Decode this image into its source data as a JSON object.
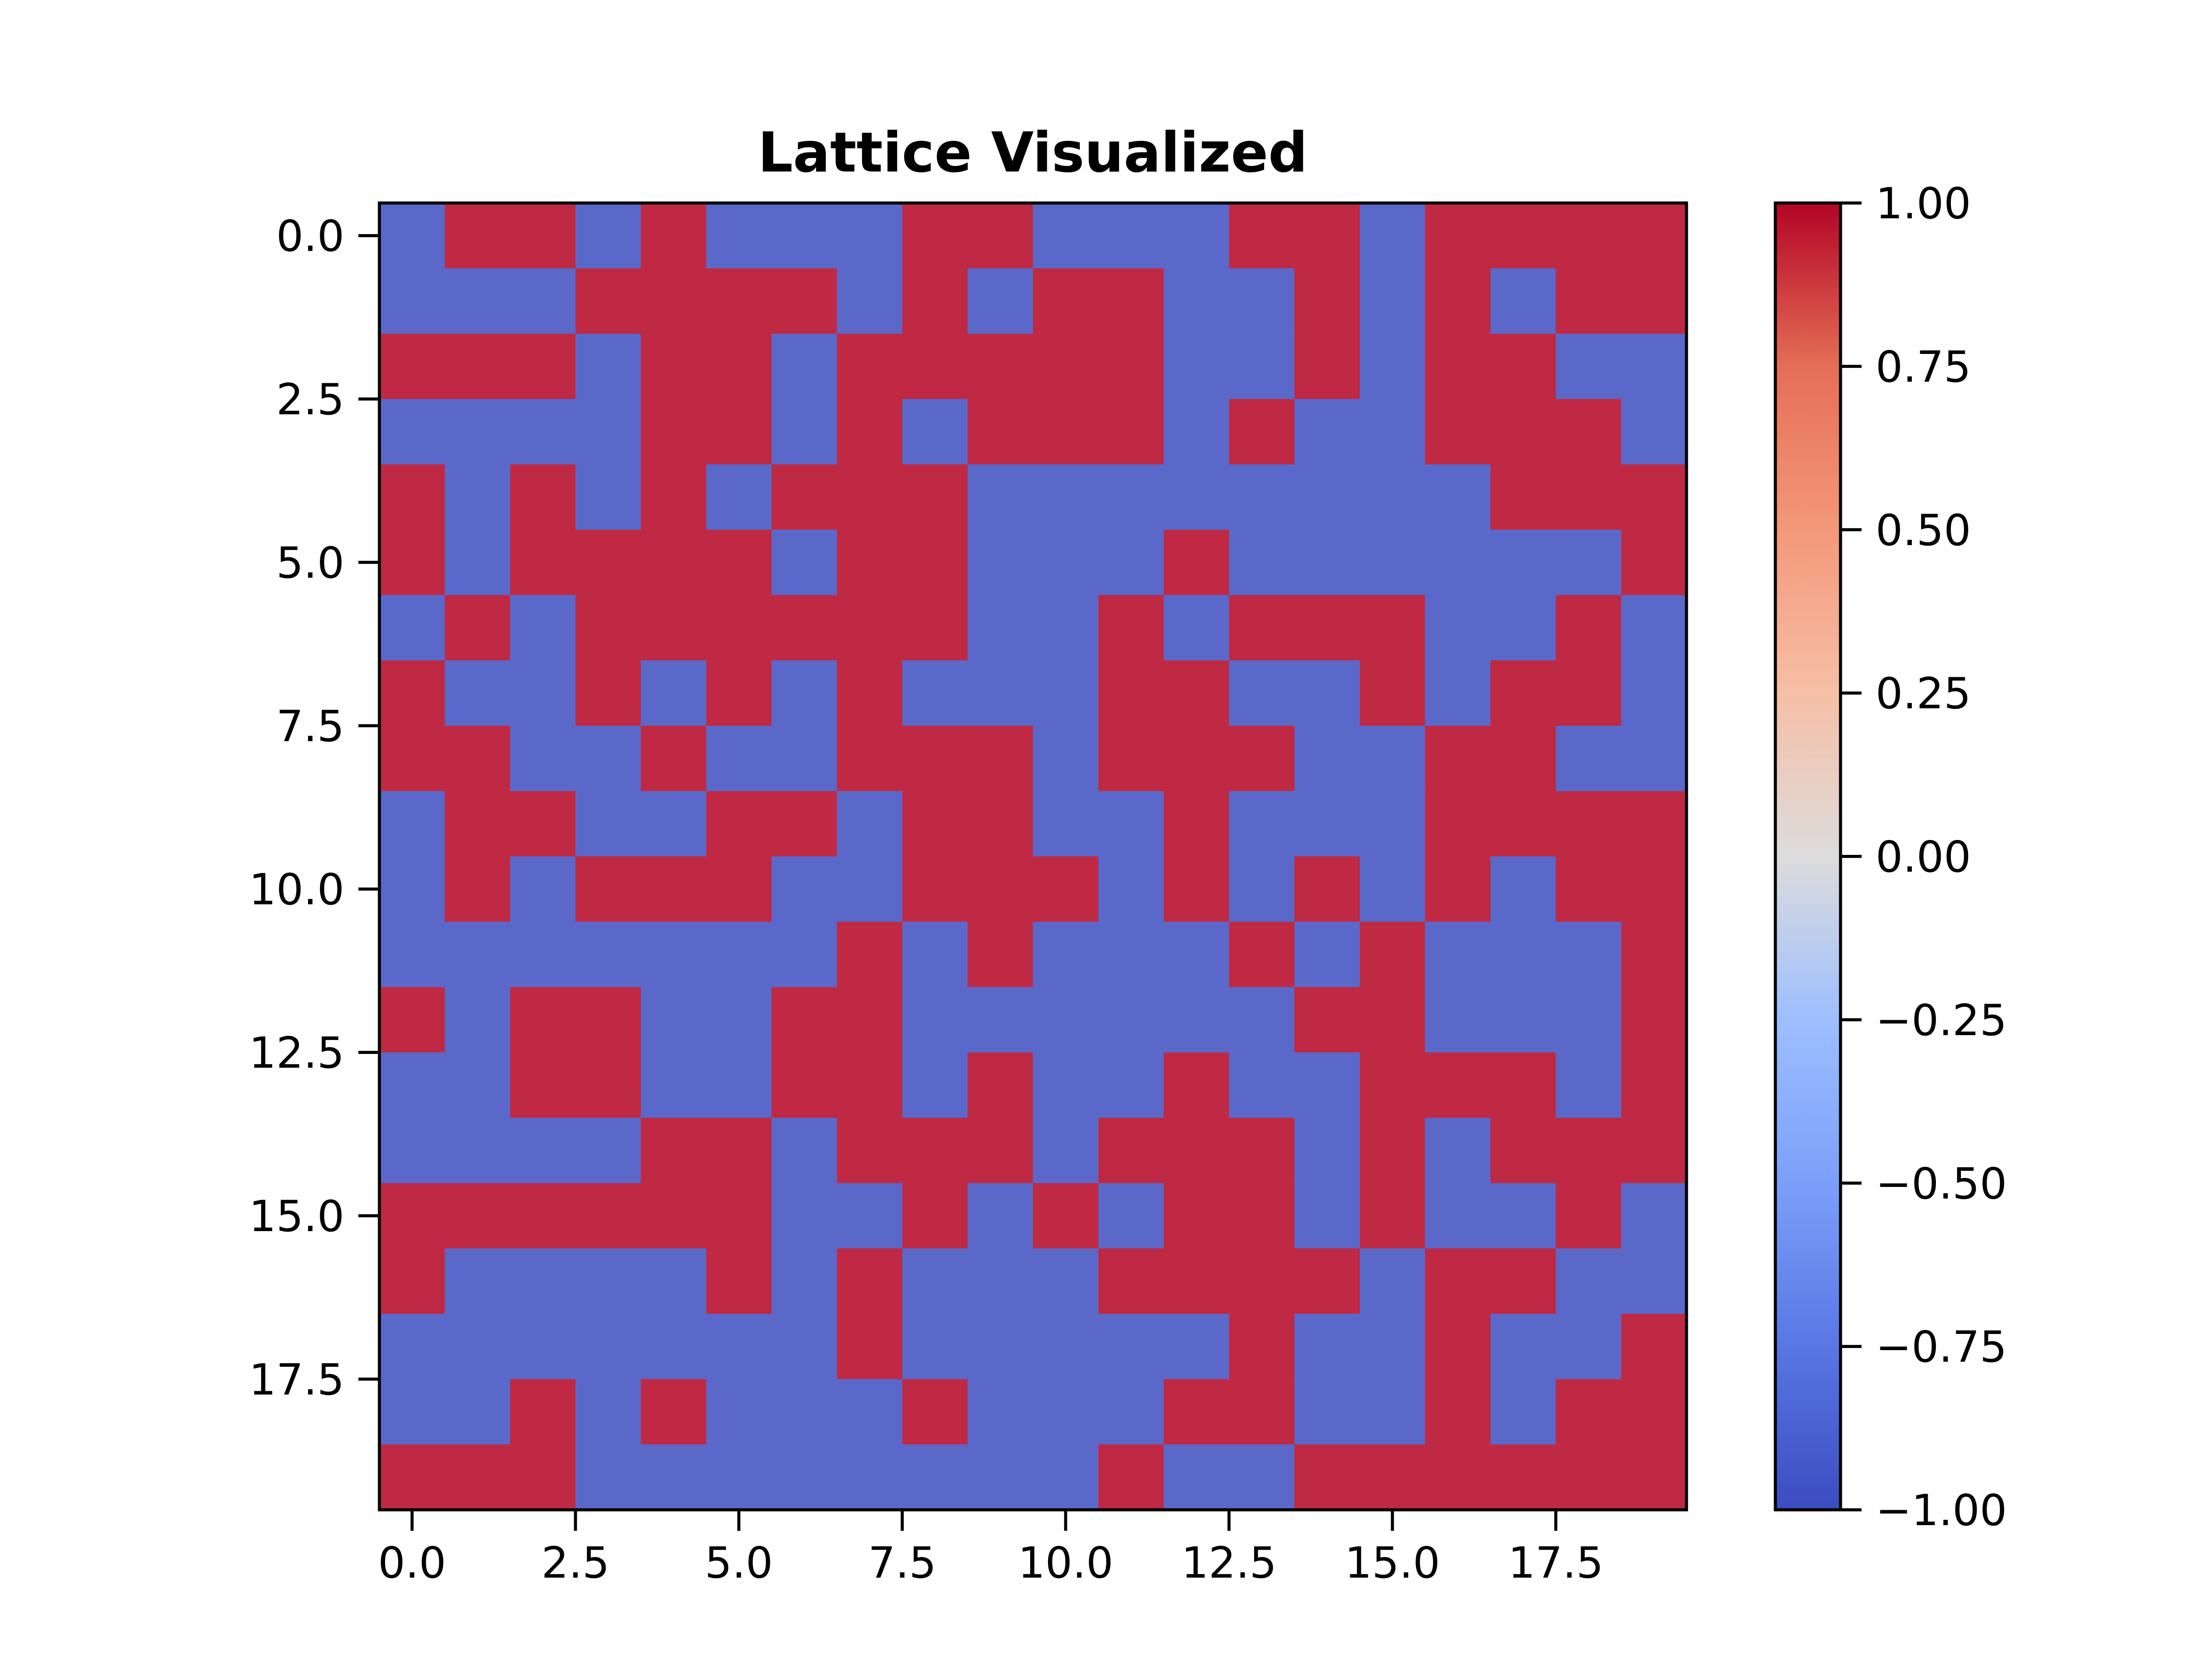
{
  "chart_data": {
    "type": "heatmap",
    "title": "Lattice Visualized",
    "xlabel": "",
    "ylabel": "",
    "x_ticks": [
      "0.0",
      "2.5",
      "5.0",
      "7.5",
      "10.0",
      "12.5",
      "15.0",
      "17.5"
    ],
    "y_ticks": [
      "0.0",
      "2.5",
      "5.0",
      "7.5",
      "10.0",
      "12.5",
      "15.0",
      "17.5"
    ],
    "x_tick_values": [
      0,
      2.5,
      5,
      7.5,
      10,
      12.5,
      15,
      17.5
    ],
    "y_tick_values": [
      0,
      2.5,
      5,
      7.5,
      10,
      12.5,
      15,
      17.5
    ],
    "xlim": [
      -0.5,
      19.5
    ],
    "ylim": [
      19.5,
      -0.5
    ],
    "colormap": "coolwarm",
    "colorbar": {
      "range": [
        -1,
        1
      ],
      "ticks": [
        "1.00",
        "0.75",
        "0.50",
        "0.25",
        "0.00",
        "−0.25",
        "−0.50",
        "−0.75",
        "−1.00"
      ],
      "tick_values": [
        1,
        0.75,
        0.5,
        0.25,
        0,
        -0.25,
        -0.5,
        -0.75,
        -1
      ]
    },
    "colors": {
      "positive": "#bf2944",
      "negative": "#5a69c9"
    },
    "values": [
      [
        -1,
        1,
        1,
        -1,
        1,
        -1,
        -1,
        -1,
        1,
        1,
        -1,
        -1,
        -1,
        1,
        1,
        -1,
        1,
        1,
        1,
        1
      ],
      [
        -1,
        -1,
        -1,
        1,
        1,
        1,
        1,
        -1,
        1,
        -1,
        1,
        1,
        -1,
        -1,
        1,
        -1,
        1,
        -1,
        1,
        1
      ],
      [
        1,
        1,
        1,
        -1,
        1,
        1,
        -1,
        1,
        1,
        1,
        1,
        1,
        -1,
        -1,
        1,
        -1,
        1,
        1,
        -1,
        -1
      ],
      [
        -1,
        -1,
        -1,
        -1,
        1,
        1,
        -1,
        1,
        -1,
        1,
        1,
        1,
        -1,
        1,
        -1,
        -1,
        1,
        1,
        1,
        -1
      ],
      [
        1,
        -1,
        1,
        -1,
        1,
        -1,
        1,
        1,
        1,
        -1,
        -1,
        -1,
        -1,
        -1,
        -1,
        -1,
        -1,
        1,
        1,
        1
      ],
      [
        1,
        -1,
        1,
        1,
        1,
        1,
        -1,
        1,
        1,
        -1,
        -1,
        -1,
        1,
        -1,
        -1,
        -1,
        -1,
        -1,
        -1,
        1
      ],
      [
        -1,
        1,
        -1,
        1,
        1,
        1,
        1,
        1,
        1,
        -1,
        -1,
        1,
        -1,
        1,
        1,
        1,
        -1,
        -1,
        1,
        -1
      ],
      [
        1,
        -1,
        -1,
        1,
        -1,
        1,
        -1,
        1,
        -1,
        -1,
        -1,
        1,
        1,
        -1,
        -1,
        1,
        -1,
        1,
        1,
        -1
      ],
      [
        1,
        1,
        -1,
        -1,
        1,
        -1,
        -1,
        1,
        1,
        1,
        -1,
        1,
        1,
        1,
        -1,
        -1,
        1,
        1,
        -1,
        -1
      ],
      [
        -1,
        1,
        1,
        -1,
        -1,
        1,
        1,
        -1,
        1,
        1,
        -1,
        -1,
        1,
        -1,
        -1,
        -1,
        1,
        1,
        1,
        1
      ],
      [
        -1,
        1,
        -1,
        1,
        1,
        1,
        -1,
        -1,
        1,
        1,
        1,
        -1,
        1,
        -1,
        1,
        -1,
        1,
        -1,
        1,
        1
      ],
      [
        -1,
        -1,
        -1,
        -1,
        -1,
        -1,
        -1,
        1,
        -1,
        1,
        -1,
        -1,
        -1,
        1,
        -1,
        1,
        -1,
        -1,
        -1,
        1
      ],
      [
        1,
        -1,
        1,
        1,
        -1,
        -1,
        1,
        1,
        -1,
        -1,
        -1,
        -1,
        -1,
        -1,
        1,
        1,
        -1,
        -1,
        -1,
        1
      ],
      [
        -1,
        -1,
        1,
        1,
        -1,
        -1,
        1,
        1,
        -1,
        1,
        -1,
        -1,
        1,
        -1,
        -1,
        1,
        1,
        1,
        -1,
        1
      ],
      [
        -1,
        -1,
        -1,
        -1,
        1,
        1,
        -1,
        1,
        1,
        1,
        -1,
        1,
        1,
        1,
        -1,
        1,
        -1,
        1,
        1,
        1
      ],
      [
        1,
        1,
        1,
        1,
        1,
        1,
        -1,
        -1,
        1,
        -1,
        1,
        -1,
        1,
        1,
        -1,
        1,
        -1,
        -1,
        1,
        -1
      ],
      [
        1,
        -1,
        -1,
        -1,
        -1,
        1,
        -1,
        1,
        -1,
        -1,
        -1,
        1,
        1,
        1,
        1,
        -1,
        1,
        1,
        -1,
        -1
      ],
      [
        -1,
        -1,
        -1,
        -1,
        -1,
        -1,
        -1,
        1,
        -1,
        -1,
        -1,
        -1,
        -1,
        1,
        -1,
        -1,
        1,
        -1,
        -1,
        1
      ],
      [
        -1,
        -1,
        1,
        -1,
        1,
        -1,
        -1,
        -1,
        1,
        -1,
        -1,
        -1,
        1,
        1,
        -1,
        -1,
        1,
        -1,
        1,
        1
      ],
      [
        1,
        1,
        1,
        -1,
        -1,
        -1,
        -1,
        -1,
        -1,
        -1,
        -1,
        1,
        -1,
        -1,
        1,
        1,
        1,
        1,
        1,
        1
      ]
    ]
  }
}
